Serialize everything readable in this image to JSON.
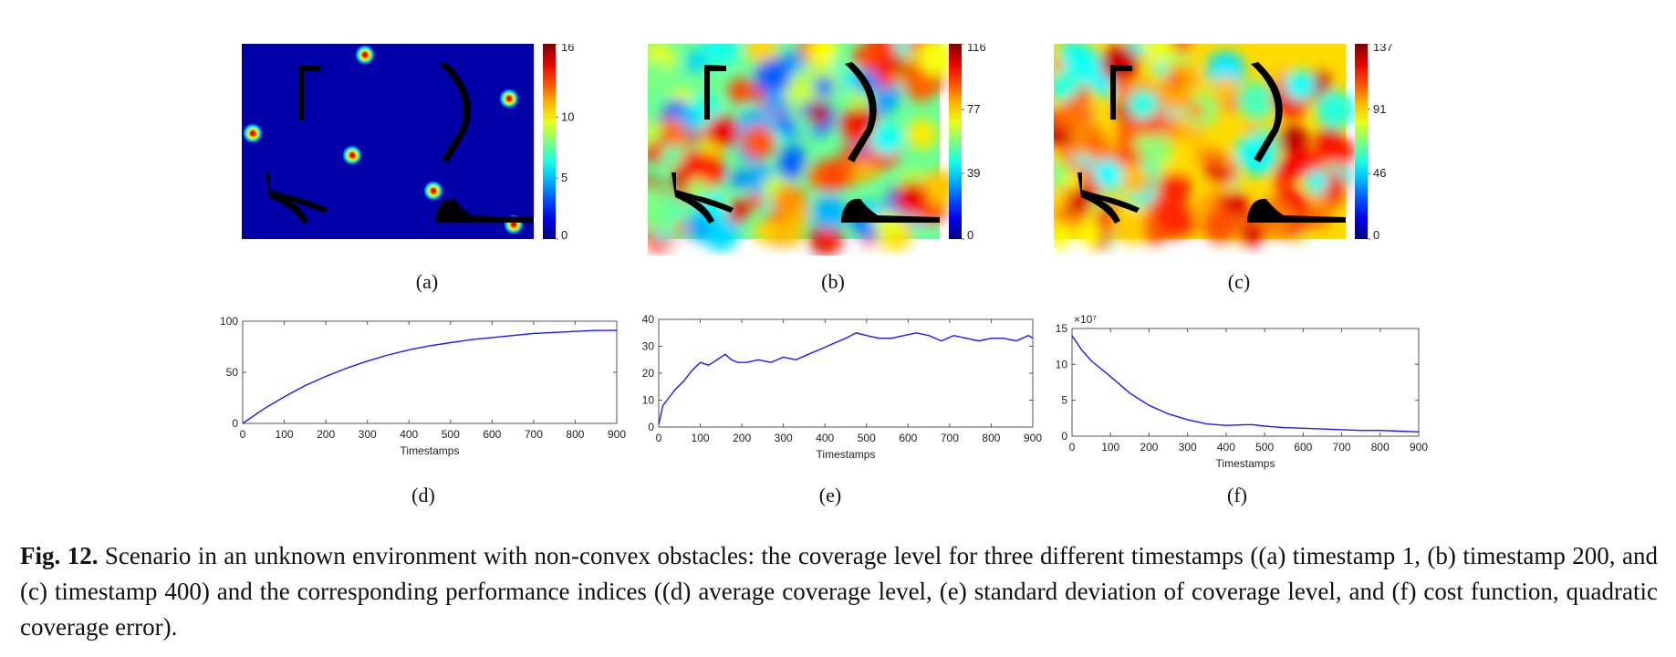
{
  "colors": {
    "field_low": "#0000a8",
    "obstacle": "#000000",
    "line": "#1a1aff",
    "axis": "#333333"
  },
  "heatmaps": [
    {
      "id": "a",
      "label": "(a)",
      "colorbar_ticks": [
        "16",
        "10",
        "5",
        "0"
      ],
      "colorbar_max": 16,
      "mode": "initial"
    },
    {
      "id": "b",
      "label": "(b)",
      "colorbar_ticks": [
        "116",
        "77",
        "39",
        "0"
      ],
      "colorbar_max": 116,
      "mode": "mid"
    },
    {
      "id": "c",
      "label": "(c)",
      "colorbar_ticks": [
        "137",
        "91",
        "46",
        "0"
      ],
      "colorbar_max": 137,
      "mode": "high"
    }
  ],
  "chart_data": [
    {
      "type": "line",
      "label": "(d)",
      "title": "",
      "xlabel": "Timestamps",
      "ylabel": "",
      "xlim": [
        0,
        900
      ],
      "ylim": [
        0,
        100
      ],
      "xticks": [
        "0",
        "100",
        "200",
        "300",
        "400",
        "500",
        "600",
        "700",
        "800",
        "900"
      ],
      "yticks": [
        "0",
        "50",
        "100"
      ],
      "y_multiplier": "",
      "series": [
        {
          "x": [
            0,
            50,
            100,
            150,
            200,
            250,
            300,
            350,
            400,
            450,
            500,
            550,
            600,
            650,
            700,
            750,
            800,
            850,
            900
          ],
          "y": [
            0,
            14,
            26,
            37,
            46,
            54,
            61,
            67,
            72,
            76,
            79,
            82,
            84,
            86,
            88,
            89,
            90,
            91,
            91
          ]
        }
      ]
    },
    {
      "type": "line",
      "label": "(e)",
      "title": "",
      "xlabel": "Timestamps",
      "ylabel": "",
      "xlim": [
        0,
        900
      ],
      "ylim": [
        0,
        40
      ],
      "xticks": [
        "0",
        "100",
        "200",
        "300",
        "400",
        "500",
        "600",
        "700",
        "800",
        "900"
      ],
      "yticks": [
        "0",
        "10",
        "20",
        "30",
        "40"
      ],
      "y_multiplier": "",
      "series": [
        {
          "x": [
            0,
            10,
            25,
            40,
            60,
            80,
            100,
            120,
            140,
            160,
            175,
            190,
            210,
            240,
            270,
            300,
            330,
            360,
            390,
            420,
            450,
            475,
            500,
            530,
            560,
            590,
            620,
            650,
            680,
            710,
            740,
            770,
            800,
            830,
            860,
            890,
            900
          ],
          "y": [
            1,
            8,
            11,
            14,
            17,
            21,
            24,
            23,
            25,
            27,
            25,
            24,
            24,
            25,
            24,
            26,
            25,
            27,
            29,
            31,
            33,
            35,
            34,
            33,
            33,
            34,
            35,
            34,
            32,
            34,
            33,
            32,
            33,
            33,
            32,
            34,
            33
          ]
        }
      ]
    },
    {
      "type": "line",
      "label": "(f)",
      "title": "",
      "xlabel": "Timestamps",
      "ylabel": "",
      "xlim": [
        0,
        900
      ],
      "ylim": [
        0,
        15
      ],
      "xticks": [
        "0",
        "100",
        "200",
        "300",
        "400",
        "500",
        "600",
        "700",
        "800",
        "900"
      ],
      "yticks": [
        "0",
        "5",
        "10",
        "15"
      ],
      "y_multiplier": "×10⁷",
      "series": [
        {
          "x": [
            0,
            25,
            50,
            100,
            150,
            200,
            250,
            300,
            350,
            400,
            450,
            470,
            500,
            550,
            600,
            650,
            700,
            750,
            800,
            850,
            900
          ],
          "y": [
            14,
            12,
            10.5,
            8.3,
            6,
            4.3,
            3.1,
            2.3,
            1.7,
            1.5,
            1.6,
            1.6,
            1.4,
            1.2,
            1.1,
            1.0,
            0.9,
            0.8,
            0.8,
            0.7,
            0.6
          ]
        }
      ]
    }
  ],
  "caption": {
    "bold": "Fig. 12.",
    "text": " Scenario in an unknown environment with non-convex obstacles: the coverage level for three different timestamps ((a) timestamp 1, (b) timestamp 200, and (c) timestamp 400) and the corresponding performance indices ((d) average coverage level, (e) standard deviation of coverage level, and (f) cost function, quadratic coverage error)."
  }
}
